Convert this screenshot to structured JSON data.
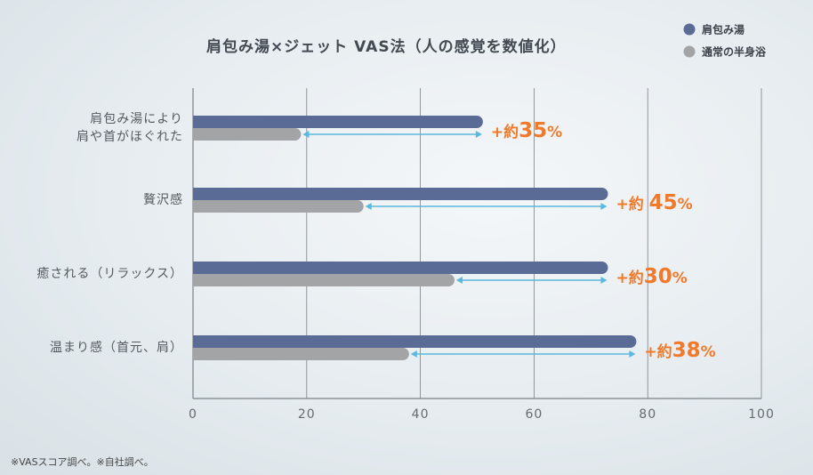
{
  "chart_data": {
    "type": "bar",
    "orientation": "horizontal",
    "title": "肩包み湯×ジェット VAS法（人の感覚を数値化）",
    "categories": [
      [
        "肩包み湯により",
        "肩や首がほぐれた"
      ],
      [
        "贅沢感"
      ],
      [
        "癒される（リラックス）"
      ],
      [
        "温まり感（首元、肩）"
      ]
    ],
    "series": [
      {
        "name": "肩包み湯",
        "color": "#5a6b96",
        "values": [
          51,
          73,
          73,
          78
        ]
      },
      {
        "name": "通常の半身浴",
        "color": "#a3a4a6",
        "values": [
          19,
          30,
          46,
          38
        ]
      }
    ],
    "annotations": [
      {
        "prefix": "+約",
        "value": "35",
        "suffix": "%"
      },
      {
        "prefix": "+約 ",
        "value": "45",
        "suffix": "%"
      },
      {
        "prefix": "+約",
        "value": "30",
        "suffix": "%"
      },
      {
        "prefix": "+約",
        "value": "38",
        "suffix": "%"
      }
    ],
    "xlim": [
      0,
      100
    ],
    "xticks": [
      0,
      20,
      40,
      60,
      80,
      100
    ],
    "grid": true,
    "legend_position": "top-right",
    "arrow_color": "#5bb8de"
  },
  "footnote": "※VASスコア調べ。※自社調べ。"
}
